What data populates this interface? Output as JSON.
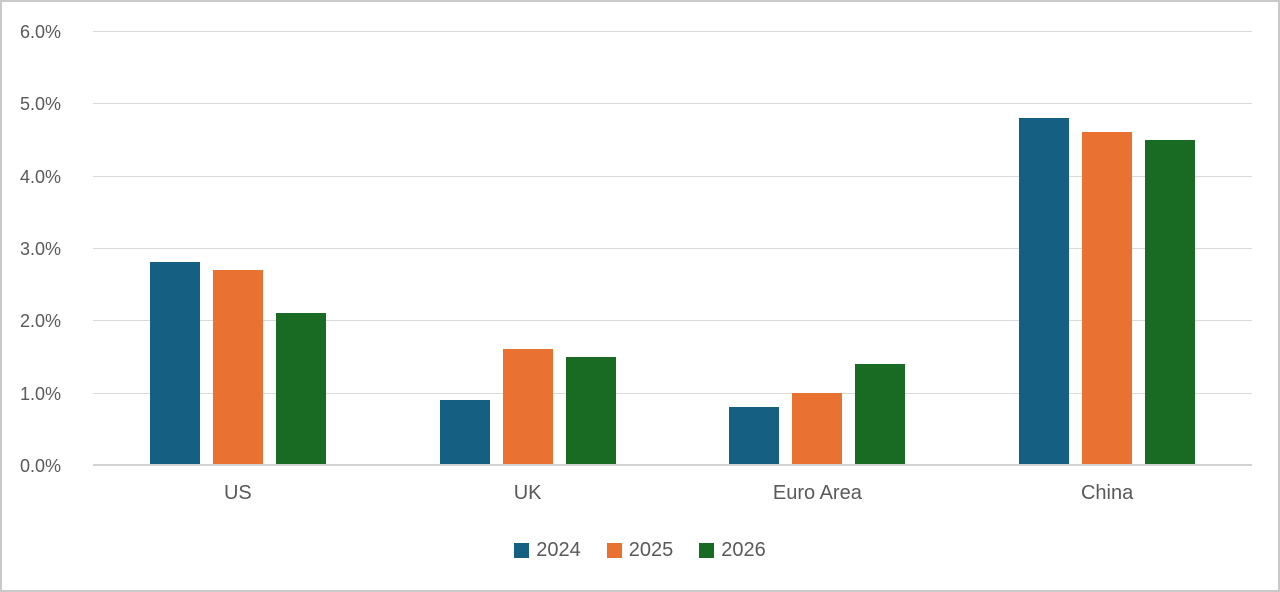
{
  "chart_data": {
    "type": "bar",
    "categories": [
      "US",
      "UK",
      "Euro Area",
      "China"
    ],
    "series": [
      {
        "name": "2024",
        "color": "#156082",
        "values": [
          2.8,
          0.9,
          0.8,
          4.8
        ]
      },
      {
        "name": "2025",
        "color": "#E97132",
        "values": [
          2.7,
          1.6,
          1.0,
          4.6
        ]
      },
      {
        "name": "2026",
        "color": "#196B24",
        "values": [
          2.1,
          1.5,
          1.4,
          4.5
        ]
      }
    ],
    "y_axis": {
      "min": 0,
      "max": 6,
      "step": 1,
      "tick_labels": [
        "0.0%",
        "1.0%",
        "2.0%",
        "3.0%",
        "4.0%",
        "5.0%",
        "6.0%"
      ]
    },
    "grid": true,
    "legend_position": "bottom",
    "legend_entries": [
      "2024",
      "2025",
      "2026"
    ]
  },
  "style": {
    "series_colors": [
      "#156082",
      "#E97132",
      "#196B24"
    ],
    "gridline_color": "#D9D9D9",
    "axis_line_color": "#D2D2D2",
    "text_color": "#595959",
    "frame_border_color": "#C9C9C9",
    "background": "#FFFFFF"
  }
}
